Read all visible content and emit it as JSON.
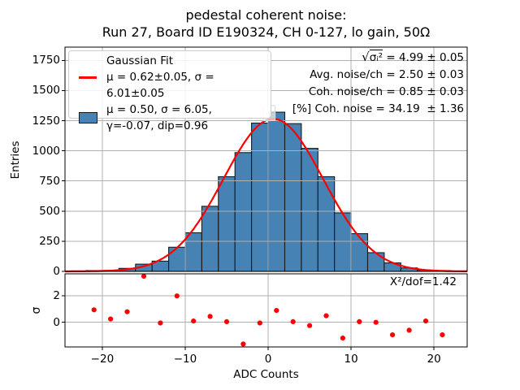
{
  "title": {
    "line1": "pedestal coherent noise:",
    "line2": "Run 27, Board ID E190324, CH 0-127, lo gain, 50Ω"
  },
  "axes": {
    "xlabel": "ADC Counts",
    "ylabel_main": "Entries",
    "ylabel_residual": "σ"
  },
  "legend": {
    "fit_label": "Gaussian Fit",
    "fit_params": "μ = 0.62±0.05, σ = 6.01±0.05",
    "hist_line1": "μ = 0.50, σ = 6.05,",
    "hist_line2": "γ=-0.07, dip=0.96"
  },
  "stats": {
    "sqrt_symbol": "√",
    "sqrt_radicand": "σᵢ²",
    "sqrt_rest": " = 4.99 ± 0.05",
    "avg_noise": "Avg. noise/ch = 2.50 ± 0.03",
    "coh_noise": "Coh. noise/ch = 0.85 ± 0.03",
    "coh_noise_pct": "[%] Coh. noise = 34.19  ± 1.36"
  },
  "residual_label": "X²/dof=1.42",
  "colors": {
    "bar_fill": "#4682b4",
    "bar_edge": "#1a1a1a",
    "fit_line": "#ff0000",
    "marker": "#ff0000",
    "grid": "#b0b0b0",
    "spine": "#000000"
  },
  "chart_data": [
    {
      "type": "bar",
      "title": "pedestal coherent noise: Run 27, Board ID E190324, CH 0-127, lo gain, 50Ω",
      "xlabel": "ADC Counts",
      "ylabel": "Entries",
      "bin_edges": [
        -22,
        -20,
        -18,
        -16,
        -14,
        -12,
        -10,
        -8,
        -6,
        -4,
        -2,
        0,
        2,
        4,
        6,
        8,
        10,
        12,
        14,
        16,
        18,
        20,
        22
      ],
      "values": [
        5,
        8,
        25,
        60,
        85,
        200,
        320,
        540,
        785,
        985,
        1230,
        1320,
        1225,
        1020,
        785,
        485,
        313,
        155,
        70,
        28,
        10,
        6
      ],
      "xlim": [
        -24.5,
        24.0
      ],
      "ylim": [
        0,
        1860
      ],
      "xticks": [
        -20,
        -10,
        0,
        10,
        20
      ],
      "xtick_labels": [
        "−20",
        "−10",
        "0",
        "10",
        "20"
      ],
      "yticks": [
        0,
        250,
        500,
        750,
        1000,
        1250,
        1500,
        1750
      ],
      "ytick_labels": [
        "0",
        "250",
        "500",
        "750",
        "1000",
        "1250",
        "1500",
        "1750"
      ],
      "grid": true,
      "legend_position": "upper left",
      "fit": {
        "type": "gaussian",
        "mu": 0.62,
        "sigma": 6.01,
        "amplitude": 1265
      },
      "peak_highlight_box": {
        "x1": -0.6,
        "x2": 0.85,
        "y1": 1250,
        "y2": 1375
      }
    },
    {
      "type": "scatter",
      "ylabel": "σ",
      "x": [
        -21,
        -19,
        -17,
        -15,
        -13,
        -11,
        -9,
        -7,
        -5,
        -3,
        -1,
        1,
        3,
        5,
        7,
        9,
        11,
        13,
        15,
        17,
        19,
        21
      ],
      "y": [
        0.95,
        0.25,
        0.8,
        3.5,
        -0.05,
        2.0,
        0.1,
        0.45,
        0.05,
        -1.65,
        -0.05,
        0.9,
        0.05,
        -0.25,
        0.5,
        -1.2,
        0.05,
        0.0,
        -0.95,
        -0.6,
        0.1,
        -0.95
      ],
      "xlim": [
        -24.5,
        24.0
      ],
      "ylim": [
        -1.87,
        3.68
      ],
      "yticks": [
        0,
        2
      ],
      "ytick_labels": [
        "0",
        "2"
      ],
      "grid": true,
      "annotation": "X²/dof=1.42"
    }
  ]
}
